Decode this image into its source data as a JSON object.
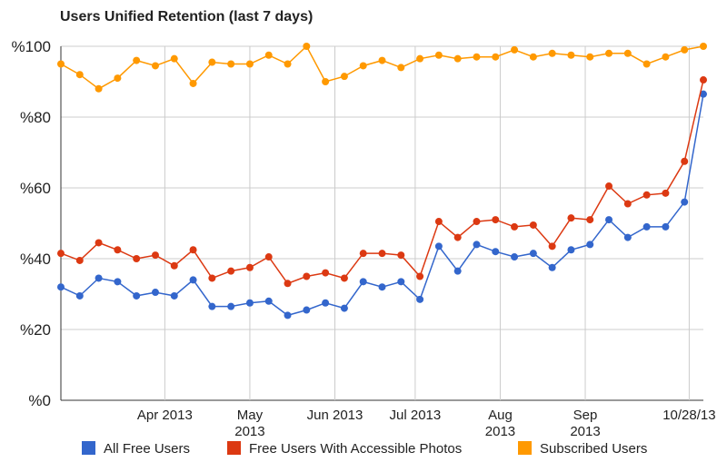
{
  "chart_data": {
    "type": "line",
    "title": "Users Unified Retention (last 7 days)",
    "ylim": [
      0,
      100
    ],
    "yticks": [
      {
        "value": 0,
        "label": "%0"
      },
      {
        "value": 20,
        "label": "%20"
      },
      {
        "value": 40,
        "label": "%40"
      },
      {
        "value": 60,
        "label": "%60"
      },
      {
        "value": 80,
        "label": "%80"
      },
      {
        "value": 100,
        "label": "%100"
      }
    ],
    "xticks": [
      {
        "index": 5.5,
        "lines": [
          "Apr 2013"
        ]
      },
      {
        "index": 10,
        "lines": [
          "May",
          "2013"
        ]
      },
      {
        "index": 14.5,
        "lines": [
          "Jun 2013"
        ]
      },
      {
        "index": 18.75,
        "lines": [
          "Jul 2013"
        ]
      },
      {
        "index": 23.25,
        "lines": [
          "Aug",
          "2013"
        ]
      },
      {
        "index": 27.75,
        "lines": [
          "Sep",
          "2013"
        ]
      },
      {
        "index": 33.25,
        "lines": [
          "10/28/13"
        ]
      }
    ],
    "grid": true,
    "legend_position": "bottom",
    "series": [
      {
        "name": "All Free Users",
        "color": "#3366cc",
        "values": [
          32,
          29.5,
          34.5,
          33.5,
          29.5,
          30.5,
          29.5,
          34,
          26.5,
          26.5,
          27.5,
          28,
          24,
          25.5,
          27.5,
          26,
          33.5,
          32,
          33.5,
          28.5,
          43.5,
          36.5,
          44,
          42,
          40.5,
          41.5,
          37.5,
          42.5,
          44,
          51,
          46,
          49,
          49,
          56,
          86.5
        ]
      },
      {
        "name": "Free Users With Accessible Photos",
        "color": "#dc3912",
        "values": [
          41.5,
          39.5,
          44.5,
          42.5,
          40,
          41,
          38,
          42.5,
          34.5,
          36.5,
          37.5,
          40.5,
          33,
          35,
          36,
          34.5,
          41.5,
          41.5,
          41,
          35,
          50.5,
          46,
          50.5,
          51,
          49,
          49.5,
          43.5,
          51.5,
          51,
          60.5,
          55.5,
          58,
          58.5,
          67.5,
          90.5
        ]
      },
      {
        "name": "Subscribed Users",
        "color": "#ff9900",
        "values": [
          95,
          92,
          88,
          91,
          96,
          94.5,
          96.5,
          89.5,
          95.5,
          95,
          95,
          97.5,
          95,
          100,
          90,
          91.5,
          94.5,
          96,
          94,
          96.5,
          97.5,
          96.5,
          97,
          97,
          99,
          97,
          98,
          97.5,
          97,
          98,
          98,
          95,
          97,
          99,
          100
        ]
      }
    ]
  }
}
